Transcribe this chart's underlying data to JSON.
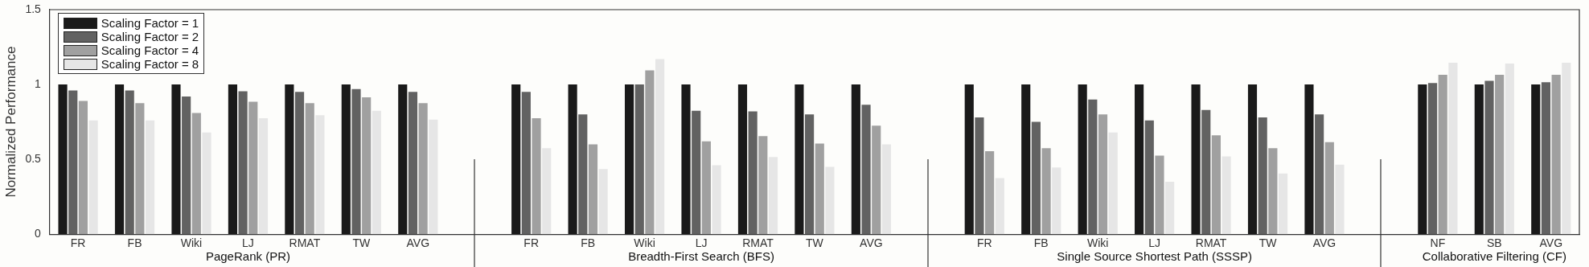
{
  "chart_data": {
    "type": "bar",
    "ylabel": "Normalized Performance",
    "categories": [
      "FR",
      "FB",
      "Wiki",
      "LJ",
      "RMAT",
      "TW",
      "AVG",
      null,
      "FR",
      "FB",
      "Wiki",
      "LJ",
      "RMAT",
      "TW",
      "AVG",
      null,
      "FR",
      "FB",
      "Wiki",
      "LJ",
      "RMAT",
      "TW",
      "AVG",
      null,
      "NF",
      "SB",
      "AVG"
    ],
    "series": [
      {
        "name": "Scaling Factor = 1",
        "color": "#1a1a1a",
        "values": [
          1,
          1,
          1,
          1,
          1,
          1,
          1,
          0,
          1,
          1,
          1,
          1,
          1,
          1,
          1,
          0,
          1,
          1,
          1,
          1,
          1,
          1,
          1,
          0,
          1,
          1,
          1
        ]
      },
      {
        "name": "Scaling Factor = 2",
        "color": "#626262",
        "values": [
          0.96,
          0.96,
          0.92,
          0.955,
          0.95,
          0.97,
          0.95,
          0,
          0.95,
          0.8,
          1,
          0.825,
          0.82,
          0.8,
          0.865,
          0,
          0.78,
          0.75,
          0.9,
          0.76,
          0.83,
          0.78,
          0.8,
          0,
          1.01,
          1.025,
          1.015
        ]
      },
      {
        "name": "Scaling Factor = 4",
        "color": "#a0a0a0",
        "values": [
          0.89,
          0.875,
          0.81,
          0.885,
          0.875,
          0.915,
          0.875,
          0,
          0.775,
          0.6,
          1.095,
          0.62,
          0.655,
          0.605,
          0.725,
          0,
          0.555,
          0.575,
          0.8,
          0.525,
          0.66,
          0.575,
          0.615,
          0,
          1.065,
          1.065,
          1.065
        ]
      },
      {
        "name": "Scaling Factor = 8",
        "color": "#e6e6e6",
        "values": [
          0.76,
          0.76,
          0.68,
          0.775,
          0.795,
          0.825,
          0.765,
          0,
          0.575,
          0.435,
          1.17,
          0.46,
          0.515,
          0.45,
          0.6,
          0,
          0.375,
          0.445,
          0.68,
          0.35,
          0.52,
          0.405,
          0.465,
          0,
          1.145,
          1.14,
          1.145
        ]
      }
    ],
    "ylim": [
      0,
      1.5
    ],
    "yticks": [
      0,
      0.5,
      1,
      1.5
    ],
    "grid": false,
    "legend": "top left",
    "annotations": [
      "PageRank (PR)",
      "Breadth-First Search (BFS)",
      "Single Source Shortest Path (SSSP)",
      "Collaborative Filtering (CF)"
    ]
  }
}
